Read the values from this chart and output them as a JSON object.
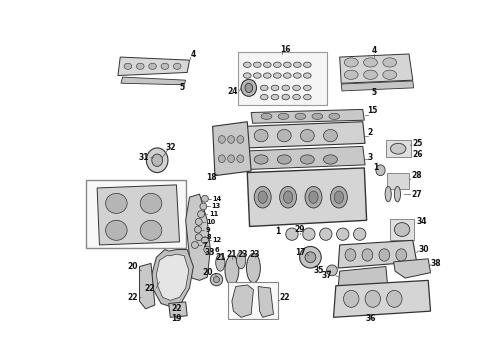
{
  "bg_color": "#ffffff",
  "fig_w": 4.9,
  "fig_h": 3.6,
  "dpi": 100,
  "line_color": "#333333",
  "label_color": "#111111",
  "part_fill": "#e8e8e8",
  "part_edge": "#333333",
  "box_edge": "#888888"
}
